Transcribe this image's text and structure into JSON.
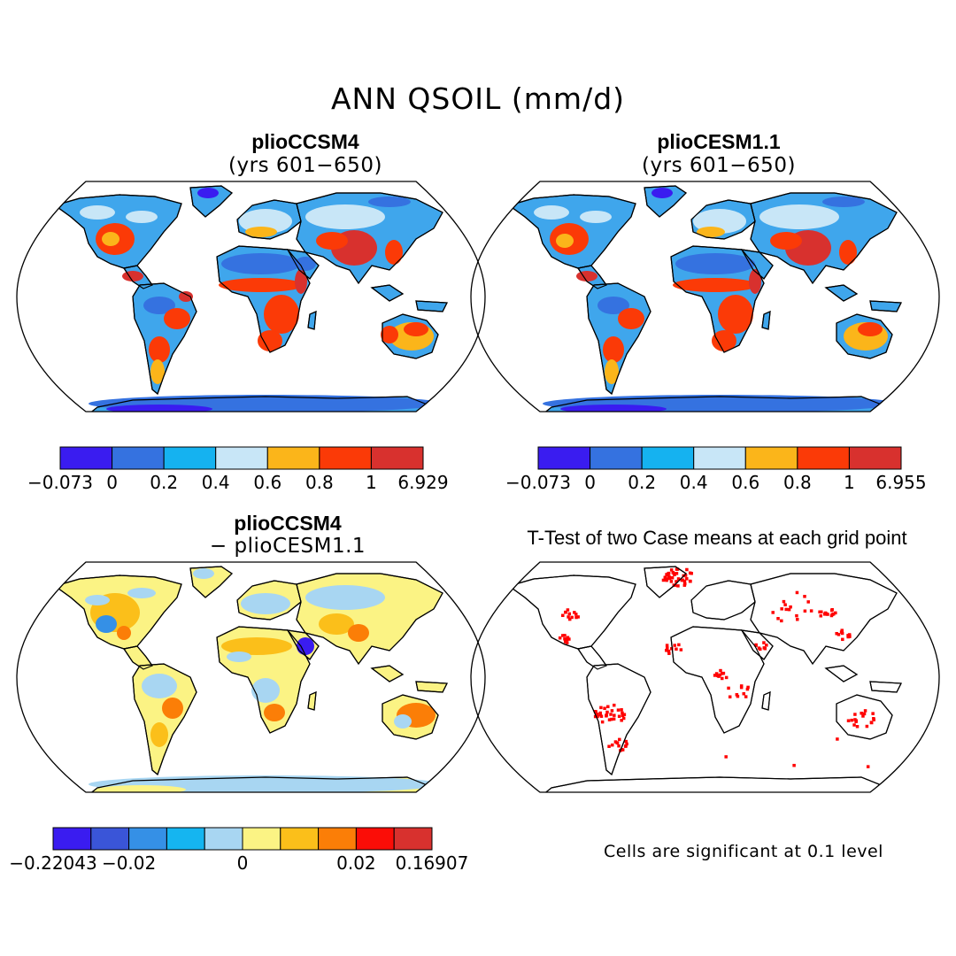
{
  "figure_title": "ANN QSOIL (mm/d)",
  "panels": [
    {
      "title": "plioCCSM4",
      "subtitle": "(yrs 601−650)"
    },
    {
      "title": "plioCESM1.1",
      "subtitle": "(yrs 601−650)"
    },
    {
      "title": "plioCCSM4",
      "subtitle": "− plioCESM1.1"
    },
    {
      "title": "T-Test of two Case means at each grid point",
      "subtitle": ""
    }
  ],
  "colorbars": [
    {
      "colors": [
        "#3a1cf0",
        "#3572e0",
        "#15b2f0",
        "#c8e6f7",
        "#fbb51a",
        "#fb3a07",
        "#d8312e"
      ],
      "labels": [
        "−0.073",
        "0",
        "0.2",
        "0.4",
        "0.6",
        "0.8",
        "1",
        "6.929"
      ]
    },
    {
      "colors": [
        "#3a1cf0",
        "#3572e0",
        "#15b2f0",
        "#c8e6f7",
        "#fbb51a",
        "#fb3a07",
        "#d8312e"
      ],
      "labels": [
        "−0.073",
        "0",
        "0.2",
        "0.4",
        "0.6",
        "0.8",
        "1",
        "6.955"
      ]
    },
    {
      "colors": [
        "#3a1cf0",
        "#3a55d8",
        "#3590e6",
        "#15b5f0",
        "#a8d6f2",
        "#fbf384",
        "#fbbf1a",
        "#fb7e07",
        "#fb0d07",
        "#d8312e"
      ],
      "labels": [
        "−0.22043",
        "−0.02",
        "0",
        "0.02",
        "0.16907"
      ],
      "label_slots": [
        0,
        2,
        5,
        8,
        10
      ]
    }
  ],
  "significance_note": "Cells are significant at 0.1 level",
  "map_colors": {
    "ocean": "#ffffff",
    "coast": "#000000",
    "significant": "#ff0000"
  }
}
